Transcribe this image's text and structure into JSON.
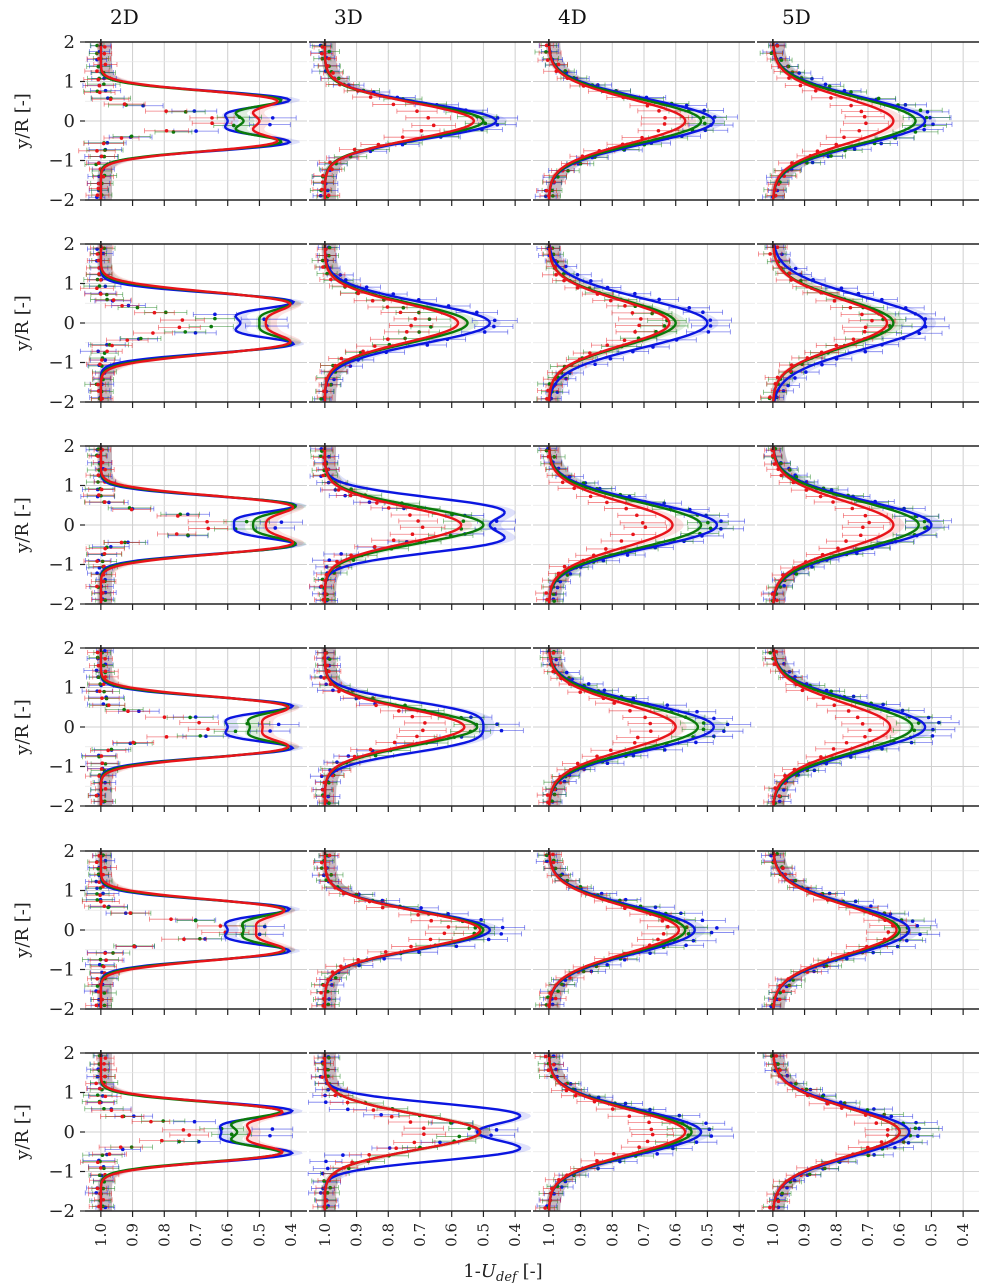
{
  "chart_data": {
    "type": "line",
    "layout": {
      "rows": 6,
      "cols": 4
    },
    "column_titles": [
      "2D",
      "3D",
      "4D",
      "5D"
    ],
    "ylabel": "y/R [-]",
    "xlabel_prefix": "1-",
    "xlabel_var": "U",
    "xlabel_sub": "def",
    "xlabel_suffix": " [-]",
    "xlim": [
      1.05,
      0.35
    ],
    "ylim": [
      -2,
      2
    ],
    "yticks": [
      -2,
      -1,
      0,
      1,
      2
    ],
    "ytick_labels": [
      "−2",
      "−1",
      "0",
      "1",
      "2"
    ],
    "xticks": [
      1.0,
      0.9,
      0.8,
      0.7,
      0.6,
      0.5,
      0.4
    ],
    "xtick_labels": [
      "1.0",
      "0.9",
      "0.8",
      "0.7",
      "0.6",
      "0.5",
      "0.4"
    ],
    "grid": true,
    "colors": {
      "blue": "#0b16e0",
      "green": "#0a7a0a",
      "red": "#e8141a"
    },
    "series_note": "Each panel: three model curves (blue, green, red) with shaded uncertainty bands, plus measured points with horizontal error bars. Values given as peak wake deficit (1-U_def at y=0 and at the twin peaks), Gaussian width.",
    "panels": [
      [
        {
          "blue": {
            "shape": "double",
            "peak": 0.43,
            "center": 0.6,
            "offset": 0.55,
            "width": 0.3
          },
          "green": {
            "shape": "double",
            "peak": 0.46,
            "center": 0.55,
            "offset": 0.55,
            "width": 0.3
          },
          "red": {
            "shape": "double",
            "peak": 0.49,
            "center": 0.5,
            "offset": 0.55,
            "width": 0.32
          },
          "points_blue": 0.43,
          "points_green": 0.52,
          "points_red": 0.64
        },
        {
          "blue": {
            "shape": "single",
            "peak": 0.46,
            "width": 0.62
          },
          "green": {
            "shape": "single",
            "peak": 0.5,
            "width": 0.62
          },
          "red": {
            "shape": "single",
            "peak": 0.53,
            "width": 0.64
          },
          "points_blue": 0.46,
          "points_green": 0.5,
          "points_red": 0.66
        },
        {
          "blue": {
            "shape": "single",
            "peak": 0.48,
            "width": 0.78
          },
          "green": {
            "shape": "single",
            "peak": 0.52,
            "width": 0.78
          },
          "red": {
            "shape": "single",
            "peak": 0.57,
            "width": 0.78
          },
          "points_blue": 0.47,
          "points_green": 0.5,
          "points_red": 0.62
        },
        {
          "blue": {
            "shape": "single",
            "peak": 0.52,
            "width": 0.82
          },
          "green": {
            "shape": "single",
            "peak": 0.55,
            "width": 0.82
          },
          "red": {
            "shape": "single",
            "peak": 0.62,
            "width": 0.82
          },
          "points_blue": 0.49,
          "points_green": 0.5,
          "points_red": 0.7
        }
      ],
      [
        {
          "blue": {
            "shape": "double",
            "peak": 0.42,
            "center": 0.56,
            "offset": 0.55,
            "width": 0.3
          },
          "green": {
            "shape": "double",
            "peak": 0.46,
            "center": 0.5,
            "offset": 0.55,
            "width": 0.34
          },
          "red": {
            "shape": "double",
            "peak": 0.48,
            "center": 0.48,
            "offset": 0.55,
            "width": 0.36
          },
          "points_blue": 0.44,
          "points_green": 0.62,
          "points_red": 0.72
        },
        {
          "blue": {
            "shape": "single",
            "peak": 0.48,
            "width": 0.72
          },
          "green": {
            "shape": "single",
            "peak": 0.55,
            "width": 0.7
          },
          "red": {
            "shape": "single",
            "peak": 0.58,
            "width": 0.7
          },
          "points_blue": 0.46,
          "points_green": 0.66,
          "points_red": 0.72
        },
        {
          "blue": {
            "shape": "single",
            "peak": 0.5,
            "width": 0.86
          },
          "green": {
            "shape": "single",
            "peak": 0.6,
            "width": 0.8
          },
          "red": {
            "shape": "single",
            "peak": 0.62,
            "width": 0.8
          },
          "points_blue": 0.48,
          "points_green": 0.64,
          "points_red": 0.7
        },
        {
          "blue": {
            "shape": "single",
            "peak": 0.52,
            "width": 0.92
          },
          "green": {
            "shape": "single",
            "peak": 0.62,
            "width": 0.84
          },
          "red": {
            "shape": "single",
            "peak": 0.64,
            "width": 0.84
          },
          "points_blue": 0.51,
          "points_green": 0.64,
          "points_red": 0.7
        }
      ],
      [
        {
          "blue": {
            "shape": "double",
            "peak": 0.42,
            "center": 0.58,
            "offset": 0.52,
            "width": 0.3
          },
          "green": {
            "shape": "double",
            "peak": 0.44,
            "center": 0.52,
            "offset": 0.52,
            "width": 0.32
          },
          "red": {
            "shape": "double",
            "peak": 0.47,
            "center": 0.48,
            "offset": 0.52,
            "width": 0.34
          },
          "points_blue": 0.41,
          "points_green": 0.52,
          "points_red": 0.64
        },
        {
          "blue": {
            "shape": "double",
            "peak": 0.46,
            "center": 0.48,
            "offset": 0.38,
            "width": 0.46
          },
          "green": {
            "shape": "single",
            "peak": 0.5,
            "width": 0.64
          },
          "red": {
            "shape": "single",
            "peak": 0.57,
            "width": 0.64
          },
          "points_blue": 0.45,
          "points_green": 0.55,
          "points_red": 0.7
        },
        {
          "blue": {
            "shape": "single",
            "peak": 0.47,
            "width": 0.8
          },
          "green": {
            "shape": "single",
            "peak": 0.52,
            "width": 0.8
          },
          "red": {
            "shape": "single",
            "peak": 0.61,
            "width": 0.8
          },
          "points_blue": 0.46,
          "points_green": 0.5,
          "points_red": 0.7
        },
        {
          "blue": {
            "shape": "single",
            "peak": 0.5,
            "width": 0.84
          },
          "green": {
            "shape": "single",
            "peak": 0.54,
            "width": 0.84
          },
          "red": {
            "shape": "single",
            "peak": 0.62,
            "width": 0.84
          },
          "points_blue": 0.5,
          "points_green": 0.52,
          "points_red": 0.7
        }
      ],
      [
        {
          "blue": {
            "shape": "double",
            "peak": 0.42,
            "center": 0.6,
            "offset": 0.55,
            "width": 0.3
          },
          "green": {
            "shape": "double",
            "peak": 0.45,
            "center": 0.53,
            "offset": 0.55,
            "width": 0.32
          },
          "red": {
            "shape": "double",
            "peak": 0.47,
            "center": 0.49,
            "offset": 0.55,
            "width": 0.34
          },
          "points_blue": 0.41,
          "points_green": 0.52,
          "points_red": 0.66
        },
        {
          "blue": {
            "shape": "double",
            "peak": 0.48,
            "center": 0.5,
            "offset": 0.3,
            "width": 0.5
          },
          "green": {
            "shape": "single",
            "peak": 0.52,
            "width": 0.64
          },
          "red": {
            "shape": "single",
            "peak": 0.56,
            "width": 0.64
          },
          "points_blue": 0.44,
          "points_green": 0.52,
          "points_red": 0.68
        },
        {
          "blue": {
            "shape": "single",
            "peak": 0.48,
            "width": 0.82
          },
          "green": {
            "shape": "single",
            "peak": 0.53,
            "width": 0.82
          },
          "red": {
            "shape": "single",
            "peak": 0.6,
            "width": 0.82
          },
          "points_blue": 0.44,
          "points_green": 0.52,
          "points_red": 0.68
        },
        {
          "blue": {
            "shape": "single",
            "peak": 0.52,
            "width": 0.86
          },
          "green": {
            "shape": "single",
            "peak": 0.56,
            "width": 0.86
          },
          "red": {
            "shape": "single",
            "peak": 0.63,
            "width": 0.86
          },
          "points_blue": 0.48,
          "points_green": 0.54,
          "points_red": 0.7
        }
      ],
      [
        {
          "blue": {
            "shape": "double",
            "peak": 0.43,
            "center": 0.6,
            "offset": 0.55,
            "width": 0.3
          },
          "green": {
            "shape": "double",
            "peak": 0.46,
            "center": 0.55,
            "offset": 0.55,
            "width": 0.32
          },
          "red": {
            "shape": "double",
            "peak": 0.48,
            "center": 0.51,
            "offset": 0.55,
            "width": 0.34
          },
          "points_blue": 0.44,
          "points_green": 0.52,
          "points_red": 0.6
        },
        {
          "blue": {
            "shape": "single",
            "peak": 0.48,
            "width": 0.66
          },
          "green": {
            "shape": "single",
            "peak": 0.5,
            "width": 0.66
          },
          "red": {
            "shape": "single",
            "peak": 0.51,
            "width": 0.66
          },
          "points_blue": 0.43,
          "points_green": 0.52,
          "points_red": 0.62
        },
        {
          "blue": {
            "shape": "single",
            "peak": 0.54,
            "width": 0.82
          },
          "green": {
            "shape": "single",
            "peak": 0.57,
            "width": 0.82
          },
          "red": {
            "shape": "single",
            "peak": 0.59,
            "width": 0.82
          },
          "points_blue": 0.48,
          "points_green": 0.55,
          "points_red": 0.62
        },
        {
          "blue": {
            "shape": "single",
            "peak": 0.57,
            "width": 0.86
          },
          "green": {
            "shape": "single",
            "peak": 0.6,
            "width": 0.86
          },
          "red": {
            "shape": "single",
            "peak": 0.61,
            "width": 0.86
          },
          "points_blue": 0.53,
          "points_green": 0.57,
          "points_red": 0.62
        }
      ],
      [
        {
          "blue": {
            "shape": "double",
            "peak": 0.42,
            "center": 0.62,
            "offset": 0.55,
            "width": 0.3
          },
          "green": {
            "shape": "double",
            "peak": 0.46,
            "center": 0.57,
            "offset": 0.55,
            "width": 0.3
          },
          "red": {
            "shape": "double",
            "peak": 0.47,
            "center": 0.53,
            "offset": 0.55,
            "width": 0.32
          },
          "points_blue": 0.43,
          "points_green": 0.58,
          "points_red": 0.72
        },
        {
          "blue": {
            "shape": "double",
            "peak": 0.47,
            "center": 0.52,
            "offset": 0.48,
            "width": 0.38
          },
          "green": {
            "shape": "single",
            "peak": 0.51,
            "width": 0.62
          },
          "red": {
            "shape": "single",
            "peak": 0.51,
            "width": 0.62
          },
          "points_blue": 0.45,
          "points_green": 0.55,
          "points_red": 0.68
        },
        {
          "blue": {
            "shape": "single",
            "peak": 0.52,
            "width": 0.78
          },
          "green": {
            "shape": "single",
            "peak": 0.55,
            "width": 0.78
          },
          "red": {
            "shape": "single",
            "peak": 0.57,
            "width": 0.78
          },
          "points_blue": 0.48,
          "points_green": 0.55,
          "points_red": 0.66
        },
        {
          "blue": {
            "shape": "single",
            "peak": 0.57,
            "width": 0.84
          },
          "green": {
            "shape": "single",
            "peak": 0.6,
            "width": 0.84
          },
          "red": {
            "shape": "single",
            "peak": 0.6,
            "width": 0.84
          },
          "points_blue": 0.53,
          "points_green": 0.55,
          "points_red": 0.64
        }
      ]
    ]
  }
}
